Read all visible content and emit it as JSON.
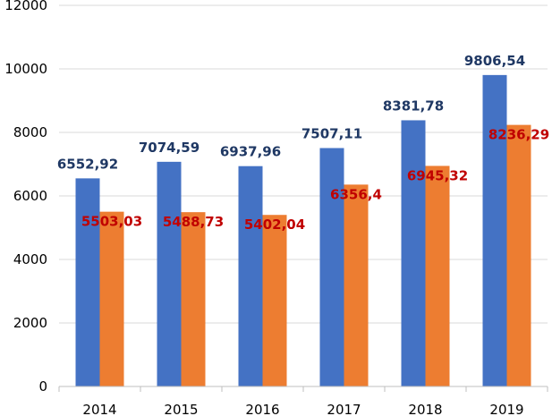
{
  "chart_data": {
    "type": "bar",
    "title": "",
    "xlabel": "",
    "ylabel": "",
    "categories": [
      "2014",
      "2015",
      "2016",
      "2017",
      "2018",
      "2019"
    ],
    "ylim": [
      0,
      12000
    ],
    "yticks": [
      0,
      2000,
      4000,
      6000,
      8000,
      10000,
      12000
    ],
    "ytick_labels": [
      "0",
      "2000",
      "4000",
      "6000",
      "8000",
      "10000",
      "12000"
    ],
    "grid": true,
    "series": [
      {
        "name": "Series 1",
        "color": "#4472C4",
        "label_color": "#1F3864",
        "values": [
          6552.92,
          7074.59,
          6937.96,
          7507.11,
          8381.78,
          9806.54
        ],
        "value_labels": [
          "6552,92",
          "7074,59",
          "6937,96",
          "7507,11",
          "8381,78",
          "9806,54"
        ]
      },
      {
        "name": "Series 2",
        "color": "#ED7D31",
        "label_color": "#C00000",
        "values": [
          5503.03,
          5488.73,
          5402.04,
          6356.4,
          6945.32,
          8236.29
        ],
        "value_labels": [
          "5503,03",
          "5488,73",
          "5402,04",
          "6356,4",
          "6945,32",
          "8236,29"
        ]
      }
    ]
  },
  "colors": {
    "grid": "#D9D9D9",
    "axis": "#BFBFBF"
  }
}
